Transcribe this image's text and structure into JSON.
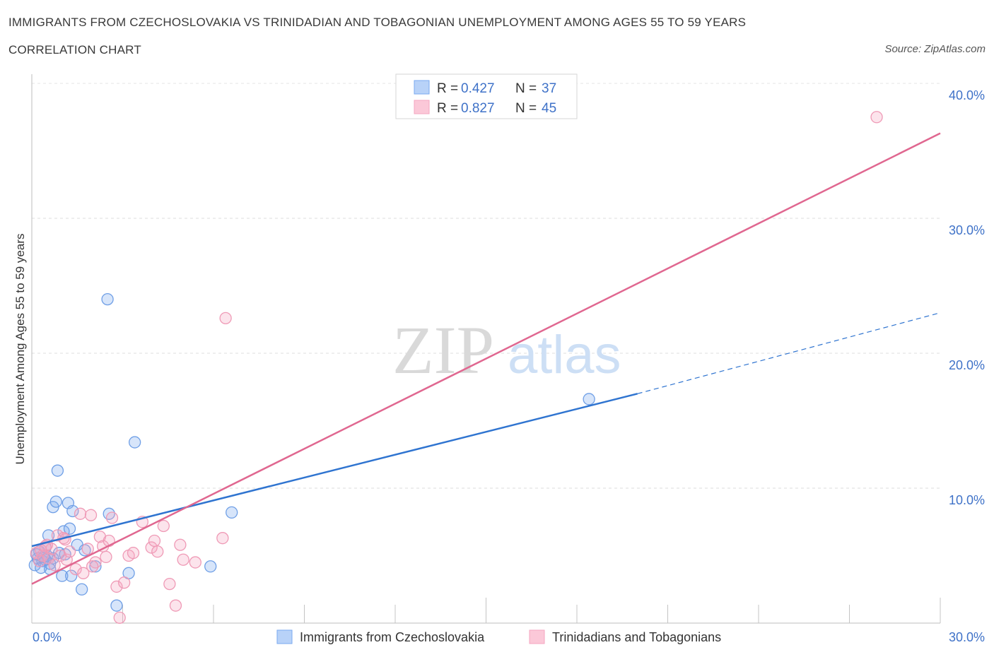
{
  "title": "IMMIGRANTS FROM CZECHOSLOVAKIA VS TRINIDADIAN AND TOBAGONIAN UNEMPLOYMENT AMONG AGES 55 TO 59 YEARS",
  "subtitle": "CORRELATION CHART",
  "source": "Source: ZipAtlas.com",
  "watermark": {
    "zip": "ZIP",
    "atlas": "atlas"
  },
  "colors": {
    "blue": "#7aaaf0",
    "blue_line": "#2f74d0",
    "pink": "#f4a6c0",
    "pink_line": "#e06790",
    "axis_text": "#3f72c8"
  },
  "chart_data": {
    "type": "scatter",
    "ylabel": "Unemployment Among Ages 55 to 59 years",
    "xlim": [
      0,
      30
    ],
    "ylim": [
      0,
      40
    ],
    "x_tick_labels": [
      "0.0%",
      "30.0%"
    ],
    "y_ticks": [
      10,
      20,
      30,
      40
    ],
    "y_tick_labels": [
      "10.0%",
      "20.0%",
      "30.0%",
      "40.0%"
    ],
    "legend_stats": [
      {
        "r_label": "R =",
        "r": "0.427",
        "n_label": "N =",
        "n": "37"
      },
      {
        "r_label": "R =",
        "r": "0.827",
        "n_label": "N =",
        "n": "45"
      }
    ],
    "series": [
      {
        "name": "Immigrants from Czechoslovakia",
        "color": "#7aaaf0",
        "trend": {
          "x1": 0,
          "y1": 5.7,
          "x2": 20,
          "y2": 17.0,
          "dash_to_x": 30,
          "dash_to_y": 23.0
        },
        "points": [
          [
            0.1,
            4.3
          ],
          [
            0.2,
            4.8
          ],
          [
            0.25,
            5.3
          ],
          [
            0.3,
            4.1
          ],
          [
            0.35,
            4.6
          ],
          [
            0.4,
            4.9
          ],
          [
            0.45,
            5.6
          ],
          [
            0.5,
            5.0
          ],
          [
            0.55,
            6.5
          ],
          [
            0.6,
            4.4
          ],
          [
            0.7,
            4.8
          ],
          [
            0.7,
            8.6
          ],
          [
            0.8,
            9.0
          ],
          [
            0.85,
            11.3
          ],
          [
            0.9,
            5.2
          ],
          [
            1.0,
            3.5
          ],
          [
            1.05,
            6.8
          ],
          [
            1.1,
            5.1
          ],
          [
            1.2,
            8.9
          ],
          [
            1.25,
            7.0
          ],
          [
            1.3,
            3.5
          ],
          [
            1.35,
            8.3
          ],
          [
            1.5,
            5.8
          ],
          [
            1.65,
            2.5
          ],
          [
            1.75,
            5.4
          ],
          [
            2.1,
            4.2
          ],
          [
            2.5,
            24.0
          ],
          [
            2.55,
            8.1
          ],
          [
            2.8,
            1.3
          ],
          [
            3.2,
            3.7
          ],
          [
            3.4,
            13.4
          ],
          [
            5.9,
            4.2
          ],
          [
            6.6,
            8.2
          ],
          [
            18.4,
            16.6
          ],
          [
            0.6,
            4.0
          ],
          [
            0.15,
            5.1
          ],
          [
            0.45,
            4.7
          ]
        ]
      },
      {
        "name": "Trinidadians and Tobagonians",
        "color": "#f4a6c0",
        "trend": {
          "x1": 0,
          "y1": 2.9,
          "x2": 30,
          "y2": 36.3
        },
        "points": [
          [
            0.15,
            5.2
          ],
          [
            0.25,
            4.6
          ],
          [
            0.35,
            5.0
          ],
          [
            0.45,
            5.7
          ],
          [
            0.55,
            4.8
          ],
          [
            0.65,
            5.5
          ],
          [
            0.75,
            4.3
          ],
          [
            0.85,
            6.5
          ],
          [
            0.95,
            5.0
          ],
          [
            1.05,
            6.3
          ],
          [
            1.15,
            4.7
          ],
          [
            1.25,
            5.3
          ],
          [
            1.45,
            4.0
          ],
          [
            1.6,
            8.1
          ],
          [
            1.7,
            3.7
          ],
          [
            1.85,
            5.5
          ],
          [
            1.95,
            8.0
          ],
          [
            2.1,
            4.5
          ],
          [
            2.25,
            6.4
          ],
          [
            2.35,
            5.7
          ],
          [
            2.45,
            4.9
          ],
          [
            2.55,
            6.1
          ],
          [
            2.65,
            7.8
          ],
          [
            2.8,
            2.7
          ],
          [
            2.9,
            0.4
          ],
          [
            3.05,
            3.0
          ],
          [
            3.2,
            5.0
          ],
          [
            3.35,
            5.2
          ],
          [
            3.65,
            7.5
          ],
          [
            3.95,
            5.6
          ],
          [
            4.05,
            6.1
          ],
          [
            4.15,
            5.3
          ],
          [
            4.35,
            7.2
          ],
          [
            4.55,
            2.9
          ],
          [
            4.75,
            1.3
          ],
          [
            4.9,
            5.8
          ],
          [
            5.0,
            4.7
          ],
          [
            5.4,
            4.5
          ],
          [
            6.3,
            6.3
          ],
          [
            6.4,
            22.6
          ],
          [
            27.9,
            37.5
          ],
          [
            0.5,
            5.8
          ],
          [
            1.1,
            6.2
          ],
          [
            2.0,
            4.2
          ],
          [
            0.3,
            5.4
          ]
        ]
      }
    ]
  }
}
